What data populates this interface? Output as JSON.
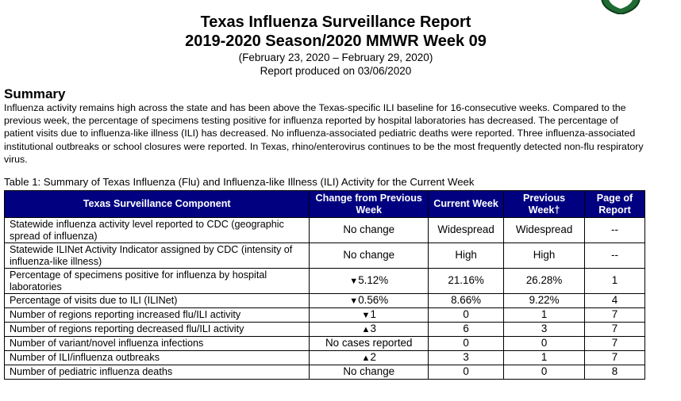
{
  "header": {
    "title_line1": "Texas Influenza Surveillance Report",
    "title_line2": "2019-2020 Season/2020 MMWR Week 09",
    "date_range": "(February 23, 2020 – February 29, 2020)",
    "produced": "Report produced on 03/06/2020"
  },
  "summary": {
    "heading": "Summary",
    "text": "Influenza activity remains high across the state and has been above the Texas-specific ILI baseline for 16-consecutive weeks. Compared to the previous week, the percentage of specimens testing positive for influenza reported by hospital laboratories has decreased. The percentage of patient visits due to influenza-like illness (ILI) has decreased. No influenza-associated pediatric deaths were reported. Three influenza-associated institutional outbreaks or school closures were reported.  In Texas, rhino/enterovirus continues to be the most frequently detected non-flu respiratory virus."
  },
  "table": {
    "caption": "Table 1: Summary of Texas Influenza (Flu) and Influenza-like Illness (ILI) Activity for the Current Week",
    "headers": {
      "component": "Texas Surveillance Component",
      "change": "Change from Previous Week",
      "current": "Current Week",
      "previous": "Previous Week†",
      "page": "Page of Report"
    },
    "rows": [
      {
        "component": "Statewide influenza activity level reported to CDC (geographic spread of influenza)",
        "change_arrow": "",
        "change": "No change",
        "current": "Widespread",
        "previous": "Widespread",
        "page": "--"
      },
      {
        "component": "Statewide ILINet Activity Indicator assigned by CDC (intensity of influenza-like illness)",
        "change_arrow": "",
        "change": "No change",
        "current": "High",
        "previous": "High",
        "page": "--"
      },
      {
        "component": "Percentage of specimens positive for influenza by hospital laboratories",
        "change_arrow": "▼",
        "change": "5.12%",
        "current": "21.16%",
        "previous": "26.28%",
        "page": "1"
      },
      {
        "component": "Percentage of visits due to ILI (ILINet)",
        "change_arrow": "▼",
        "change": "0.56%",
        "current": "8.66%",
        "previous": "9.22%",
        "page": "4"
      },
      {
        "component": "Number of regions reporting increased flu/ILI activity",
        "change_arrow": "▼",
        "change": "1",
        "current": "0",
        "previous": "1",
        "page": "7"
      },
      {
        "component": "Number of regions reporting decreased flu/ILI activity",
        "change_arrow": "▲",
        "change": "3",
        "current": "6",
        "previous": "3",
        "page": "7"
      },
      {
        "component": "Number of variant/novel influenza infections",
        "change_arrow": "",
        "change": "No cases reported",
        "current": "0",
        "previous": "0",
        "page": "7"
      },
      {
        "component": "Number of ILI/influenza outbreaks",
        "change_arrow": "▲",
        "change": "2",
        "current": "3",
        "previous": "1",
        "page": "7"
      },
      {
        "component": "Number of pediatric influenza deaths",
        "change_arrow": "",
        "change": "No change",
        "current": "0",
        "previous": "0",
        "page": "8"
      }
    ]
  },
  "colors": {
    "header_bg": "#000080",
    "header_text": "#ffffff",
    "logo_green": "#1f6b33"
  },
  "icons": {
    "logo": "dshs-shield-logo"
  }
}
